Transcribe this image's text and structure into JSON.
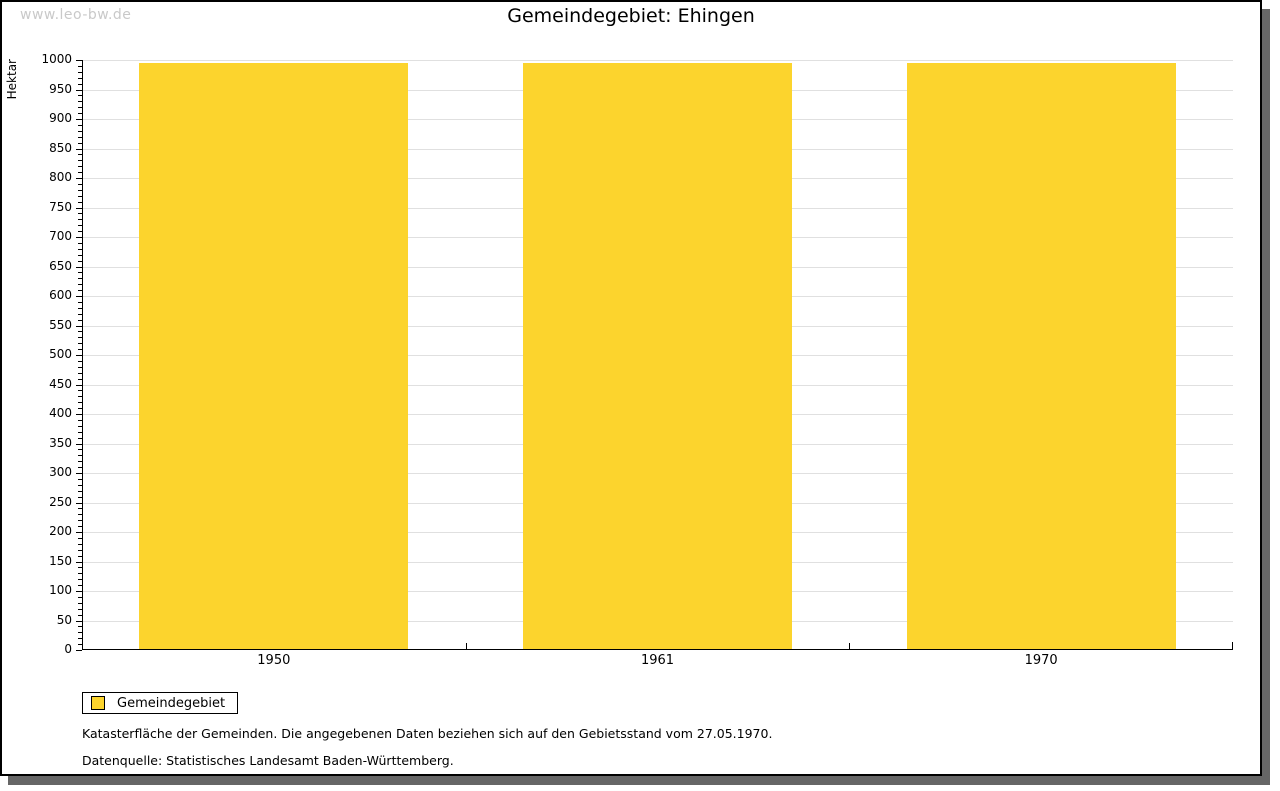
{
  "watermark": "www.leo-bw.de",
  "header": {
    "title": "Gemeindegebiet: Ehingen"
  },
  "chart_data": {
    "type": "bar",
    "title": "Gemeindegebiet: Ehingen",
    "categories": [
      "1950",
      "1961",
      "1970"
    ],
    "series": [
      {
        "name": "Gemeindegebiet",
        "values": [
          995,
          995,
          995
        ],
        "color": "#fcd42d"
      }
    ],
    "xlabel": "",
    "ylabel": "Hektar",
    "ylim": [
      0,
      1000
    ],
    "y_major_step": 50,
    "y_minor_step": 10,
    "grid": true,
    "legend_position": "bottom-left"
  },
  "legend": {
    "items": [
      {
        "label": "Gemeindegebiet",
        "color": "#fcd42d"
      }
    ]
  },
  "footer": {
    "note": "Katasterfläche der Gemeinden. Die angegebenen Daten beziehen sich auf den Gebietsstand vom 27.05.1970.",
    "source": "Datenquelle: Statistisches Landesamt Baden-Württemberg."
  },
  "colors": {
    "bar": "#fcd42d",
    "gridline": "#e0e0e0",
    "axis": "#000000",
    "watermark": "#c9c9c9",
    "frame_shadow": "#666666"
  }
}
